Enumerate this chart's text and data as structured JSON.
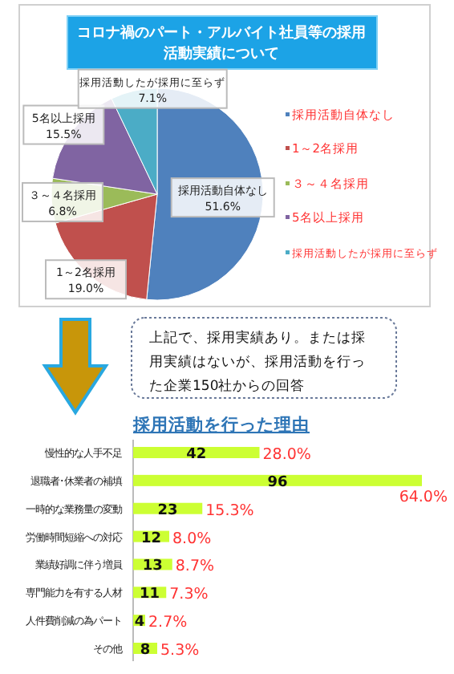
{
  "chart_data": [
    {
      "type": "pie",
      "title": "コロナ禍のパート・アルバイト社員等の採用活動実績について",
      "categories": [
        "採用活動自体なし",
        "1～2名採用",
        "３～４名採用",
        "5名以上採用",
        "採用活動したが採用に至らず"
      ],
      "values": [
        51.6,
        19.0,
        6.8,
        15.5,
        7.1
      ],
      "colors": [
        "#4f81bd",
        "#c0504d",
        "#9bbb59",
        "#8064a2",
        "#4bacc6"
      ],
      "value_labels": [
        "51.6%",
        "19.0%",
        "6.8%",
        "15.5%",
        "7.1%"
      ],
      "legend": "right"
    },
    {
      "type": "bar",
      "orientation": "horizontal",
      "title": "採用活動を行った理由",
      "categories": [
        "慢性的な人手不足",
        "退職者･休業者の補填",
        "一時的な業務量の変動",
        "労働時間短縮への対応",
        "業績好調に伴う増員",
        "専門能力を有する人材",
        "人件費削減の為パート",
        "その他"
      ],
      "values": [
        42,
        96,
        23,
        12,
        13,
        11,
        4,
        8
      ],
      "color": "#ccff33",
      "data_labels": true,
      "annotations": [
        "上記で、採用実績あり。または採用実績はないが、採用活動を行った企業150社からの回答",
        {
          "text": "28.0%",
          "x": 42,
          "y": "慢性的な人手不足"
        },
        {
          "text": "64.0%",
          "x": 96,
          "y": "退職者･休業者の補填"
        },
        {
          "text": "15.3%",
          "x": 23,
          "y": "一時的な業務量の変動"
        },
        {
          "text": "8.0%",
          "x": 12,
          "y": "労働時間短縮への対応"
        },
        {
          "text": "8.7%",
          "x": 13,
          "y": "業績好調に伴う増員"
        },
        {
          "text": "7.3%",
          "x": 11,
          "y": "専門能力を有する人材"
        },
        {
          "text": "2.7%",
          "x": 4,
          "y": "人件費削減の為パート"
        },
        {
          "text": "5.3%",
          "x": 8,
          "y": "その他"
        }
      ]
    }
  ]
}
